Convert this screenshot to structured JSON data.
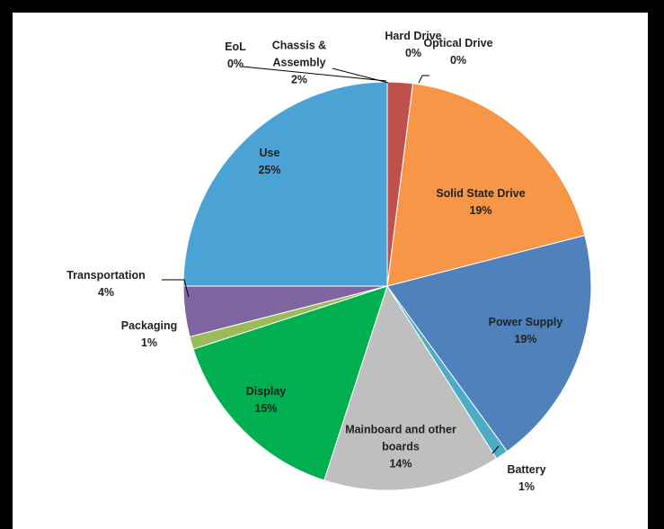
{
  "chart_data": {
    "type": "pie",
    "categories": [
      "Chassis & Assembly",
      "Hard Drive",
      "Optical Drive",
      "Solid State Drive",
      "Power Supply",
      "Battery",
      "Mainboard and other boards",
      "Display",
      "Packaging",
      "Transportation",
      "Use",
      "EoL"
    ],
    "values": [
      2,
      0,
      0,
      19,
      19,
      1,
      14,
      15,
      1,
      4,
      25,
      0
    ],
    "value_labels": [
      "2%",
      "0%",
      "0%",
      "19%",
      "19%",
      "1%",
      "14%",
      "15%",
      "1%",
      "4%",
      "25%",
      "0%"
    ],
    "colors": [
      "#c0504d",
      "#7f7f7f",
      "#d9d9d9",
      "#f79646",
      "#4f81bd",
      "#4bacc6",
      "#bfbfbf",
      "#00b050",
      "#9bbb59",
      "#8064a2",
      "#4aa3d4",
      "#1f497d"
    ]
  }
}
